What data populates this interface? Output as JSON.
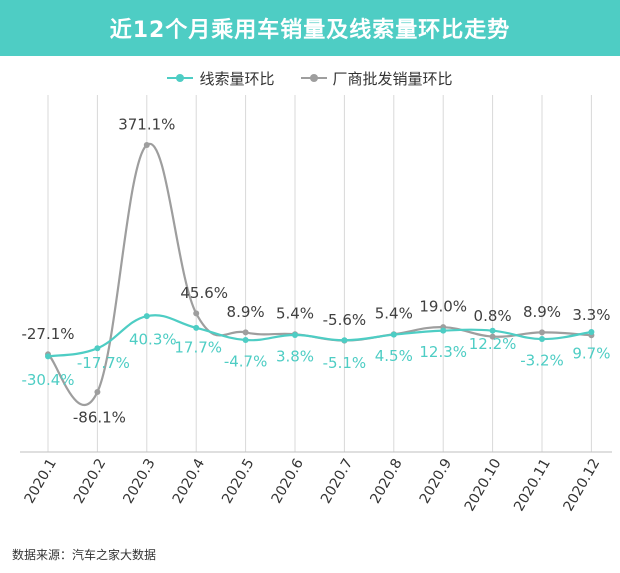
{
  "header": {
    "title": "近12个月乘用车销量及线索量环比走势"
  },
  "source": "数据来源：汽车之家大数据",
  "colors": {
    "title_bg": "#4ecdc4",
    "series_leads": "#4ecdc4",
    "series_wholesale": "#9e9e9e"
  },
  "chart_data": {
    "type": "line",
    "title": "近12个月乘用车销量及线索量环比走势",
    "xlabel": "",
    "ylabel": "",
    "categories": [
      "2020.1",
      "2020.2",
      "2020.3",
      "2020.4",
      "2020.5",
      "2020.6",
      "2020.7",
      "2020.8",
      "2020.9",
      "2020.10",
      "2020.11",
      "2020.12"
    ],
    "series": [
      {
        "name": "线索量环比",
        "values": [
          -30.4,
          -17.7,
          40.3,
          17.7,
          -4.7,
          3.8,
          -5.1,
          4.5,
          12.3,
          12.2,
          -3.2,
          9.7
        ],
        "labels": [
          "-30.4%",
          "-17.7%",
          "40.3%",
          "17.7%",
          "-4.7%",
          "3.8%",
          "-5.1%",
          "4.5%",
          "12.3%",
          "12.2%",
          "-3.2%",
          "9.7%"
        ]
      },
      {
        "name": "厂商批发销量环比",
        "values": [
          -27.1,
          -86.1,
          371.1,
          45.6,
          8.9,
          5.4,
          -5.6,
          5.4,
          19.0,
          0.8,
          8.9,
          3.3
        ],
        "labels": [
          "-27.1%",
          "-86.1%",
          "371.1%",
          "45.6%",
          "8.9%",
          "5.4%",
          "-5.6%",
          "5.4%",
          "19.0%",
          "0.8%",
          "8.9%",
          "3.3%"
        ]
      }
    ],
    "grid": "vertical",
    "legend_position": "top-center"
  }
}
